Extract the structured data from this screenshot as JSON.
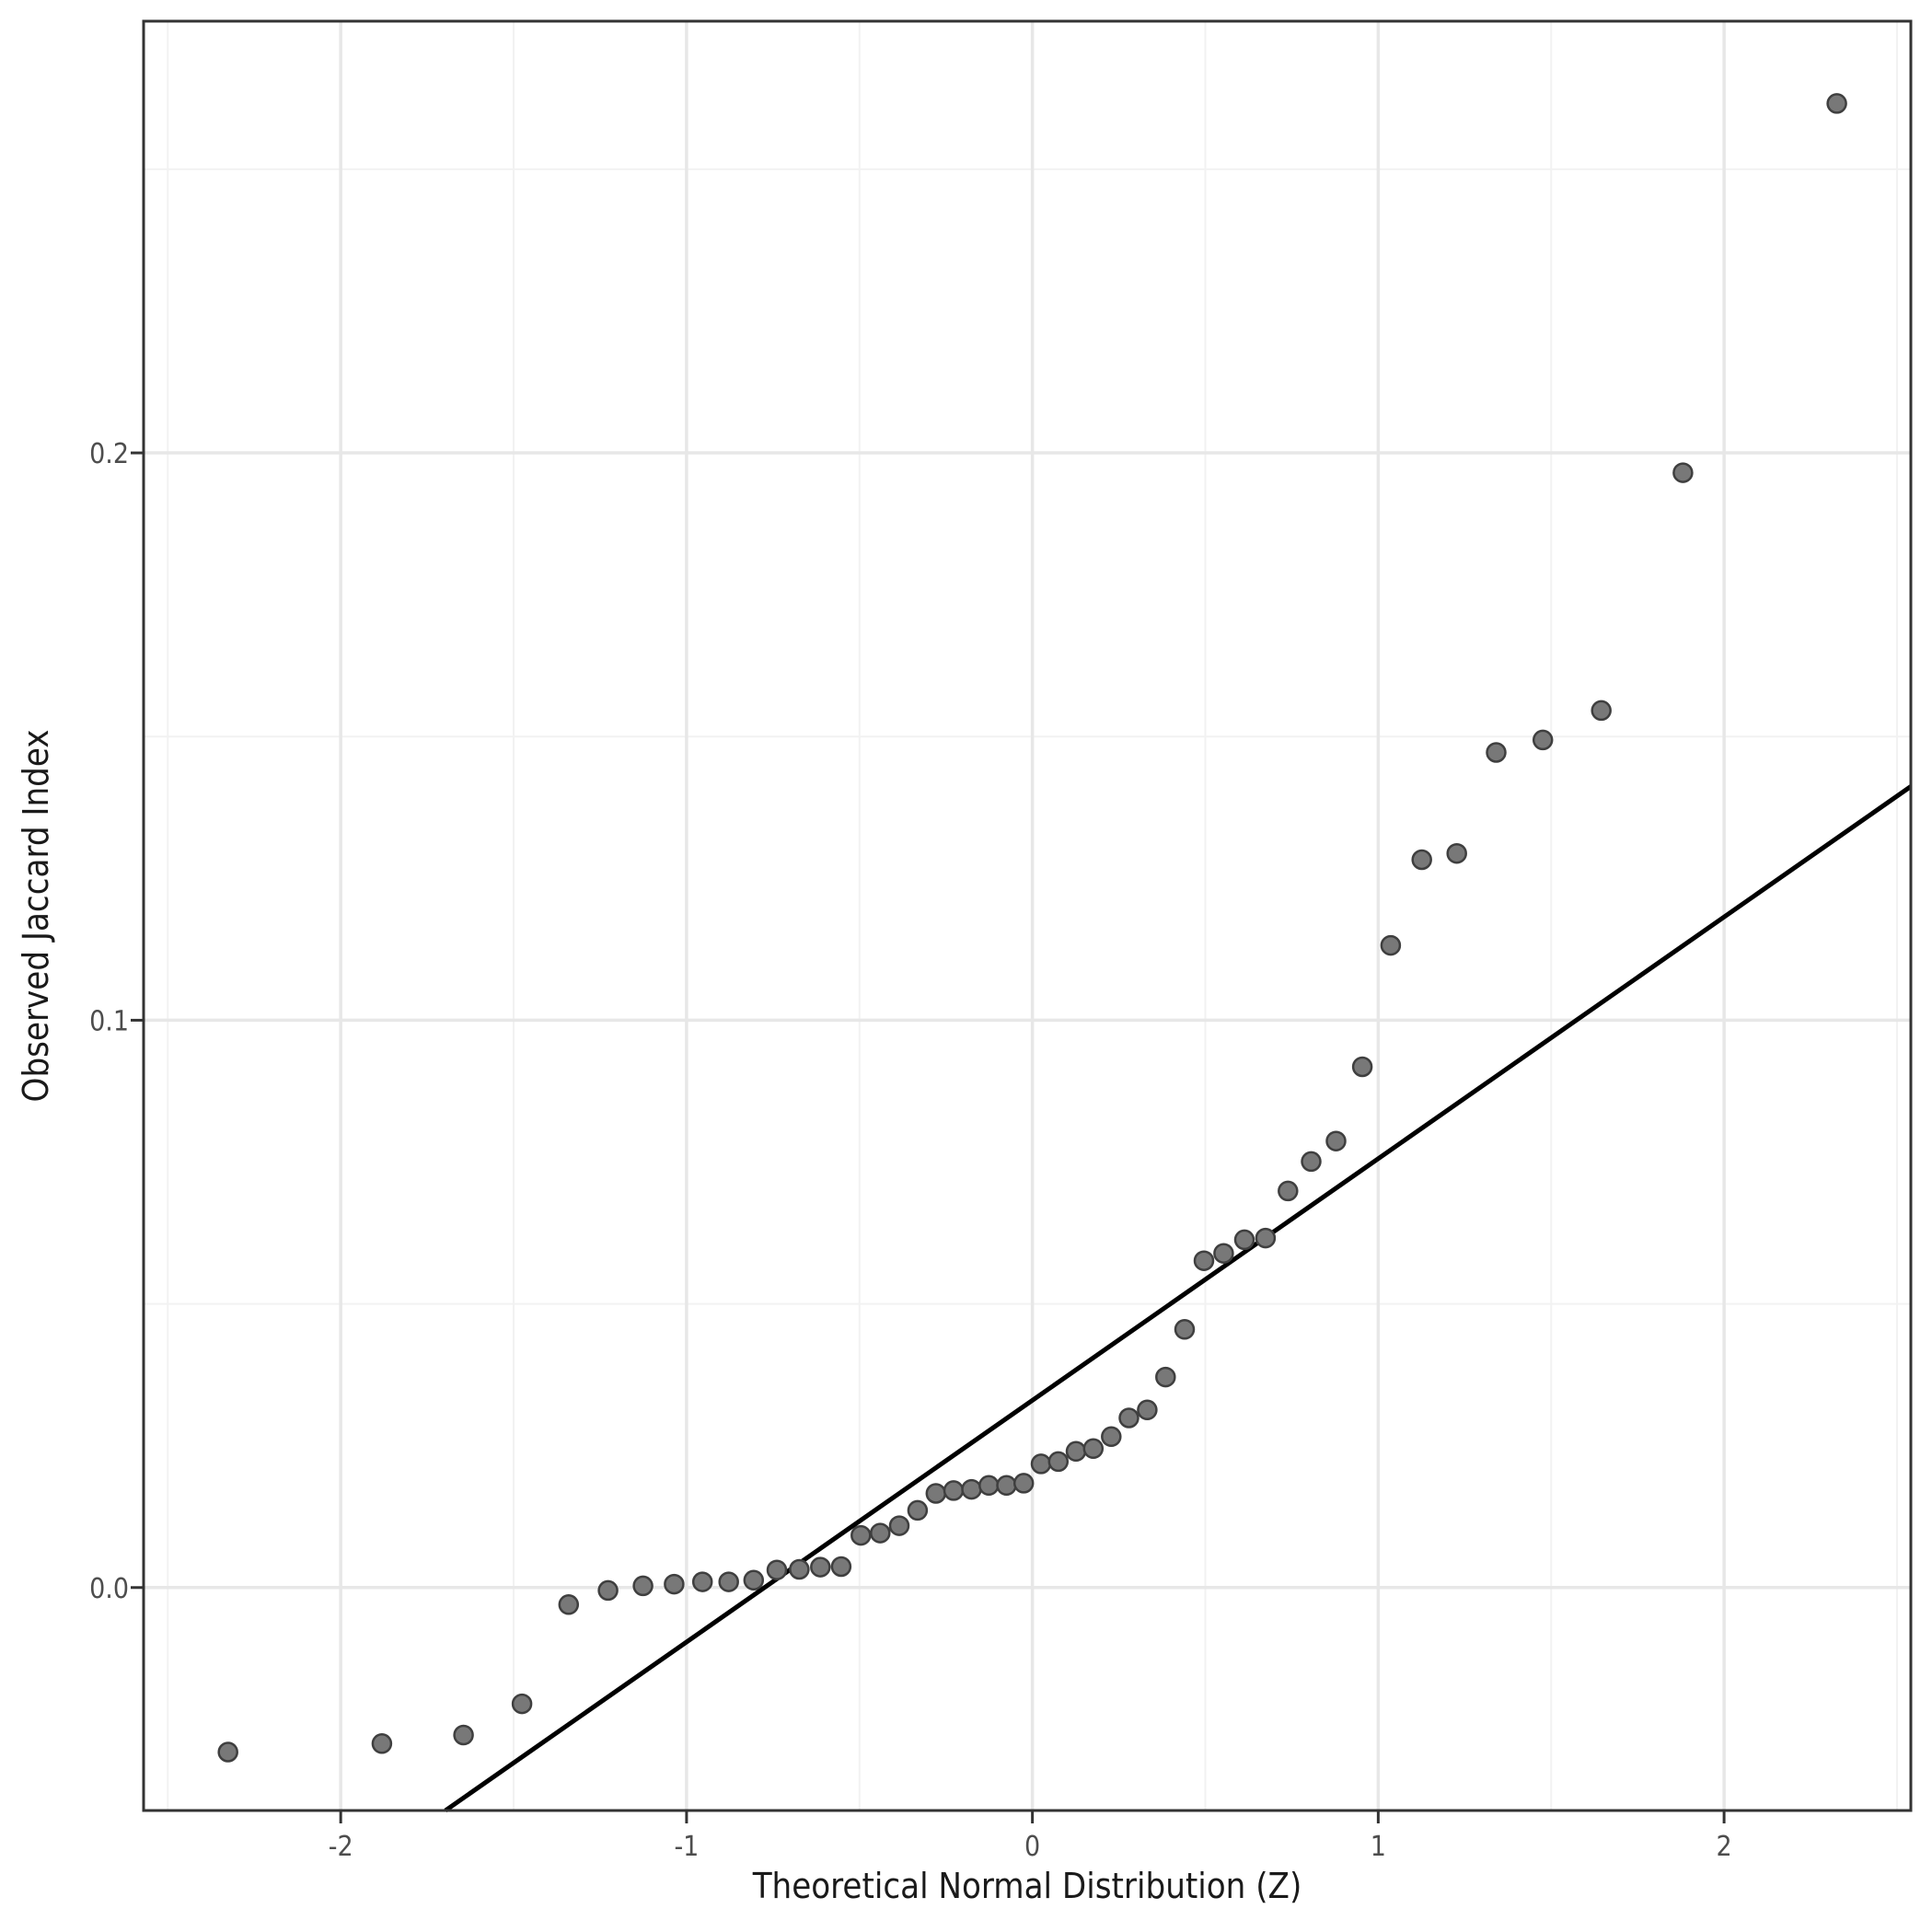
{
  "figure": {
    "x_title": "Theoretical Normal Distribution (Z)",
    "y_title": "Observed Jaccard Index"
  },
  "chart_data": {
    "type": "scatter",
    "title": "",
    "xlabel": "Theoretical Normal Distribution (Z)",
    "ylabel": "Observed Jaccard Index",
    "xlim": [
      -2.57,
      2.54
    ],
    "ylim": [
      -0.0393,
      0.2761
    ],
    "grid": "on",
    "legend": "none",
    "x_ticks": {
      "major": [
        -2,
        -1,
        0,
        1,
        2
      ],
      "labels": [
        "-2",
        "-1",
        "0",
        "1",
        "2"
      ],
      "minor": [
        -2.5,
        -1.5,
        -0.5,
        0.5,
        1.5,
        2.5
      ]
    },
    "y_ticks": {
      "major": [
        0,
        0.1,
        0.2
      ],
      "labels": [
        "0.0",
        "0.1",
        "0.2"
      ],
      "minor": [
        0.05,
        0.15,
        0.25
      ]
    },
    "reference_line": {
      "slope": 0.0426,
      "intercept": 0.033
    },
    "series": [
      {
        "name": "observed-vs-theoretical-quantiles",
        "points": [
          [
            -2.326,
            -0.029
          ],
          [
            -1.881,
            -0.0275
          ],
          [
            -1.645,
            -0.026
          ],
          [
            -1.476,
            -0.0205
          ],
          [
            -1.341,
            -0.003
          ],
          [
            -1.227,
            -0.0005
          ],
          [
            -1.126,
            0.0003
          ],
          [
            -1.036,
            0.0006
          ],
          [
            -0.954,
            0.001
          ],
          [
            -0.878,
            0.001
          ],
          [
            -0.806,
            0.0013
          ],
          [
            -0.739,
            0.0031
          ],
          [
            -0.674,
            0.0032
          ],
          [
            -0.613,
            0.0036
          ],
          [
            -0.553,
            0.0037
          ],
          [
            -0.496,
            0.0092
          ],
          [
            -0.44,
            0.0096
          ],
          [
            -0.385,
            0.0109
          ],
          [
            -0.332,
            0.0136
          ],
          [
            -0.279,
            0.0166
          ],
          [
            -0.228,
            0.0171
          ],
          [
            -0.176,
            0.0173
          ],
          [
            -0.126,
            0.018
          ],
          [
            -0.075,
            0.018
          ],
          [
            -0.025,
            0.0184
          ],
          [
            0.025,
            0.0218
          ],
          [
            0.075,
            0.0222
          ],
          [
            0.126,
            0.024
          ],
          [
            0.176,
            0.0245
          ],
          [
            0.228,
            0.0266
          ],
          [
            0.279,
            0.0299
          ],
          [
            0.332,
            0.0313
          ],
          [
            0.385,
            0.0371
          ],
          [
            0.44,
            0.0455
          ],
          [
            0.496,
            0.0576
          ],
          [
            0.553,
            0.0589
          ],
          [
            0.613,
            0.0613
          ],
          [
            0.674,
            0.0616
          ],
          [
            0.739,
            0.0699
          ],
          [
            0.806,
            0.0751
          ],
          [
            0.878,
            0.0787
          ],
          [
            0.954,
            0.0918
          ],
          [
            1.036,
            0.1132
          ],
          [
            1.126,
            0.1283
          ],
          [
            1.227,
            0.1294
          ],
          [
            1.341,
            0.1472
          ],
          [
            1.476,
            0.1494
          ],
          [
            1.645,
            0.1546
          ],
          [
            1.881,
            0.1965
          ],
          [
            2.326,
            0.2616
          ]
        ]
      }
    ],
    "colors": {
      "point_fill": "#787878",
      "point_stroke": "#3f3f3f",
      "reference_line": "#000000",
      "grid_major": "#e7e7e7",
      "grid_minor": "#f2f2f2",
      "panel_border": "#333333",
      "tick_mark": "#333333",
      "tick_label": "#4d4d4d",
      "axis_title": "#1a1a1a",
      "panel_background": "#ffffff"
    }
  }
}
